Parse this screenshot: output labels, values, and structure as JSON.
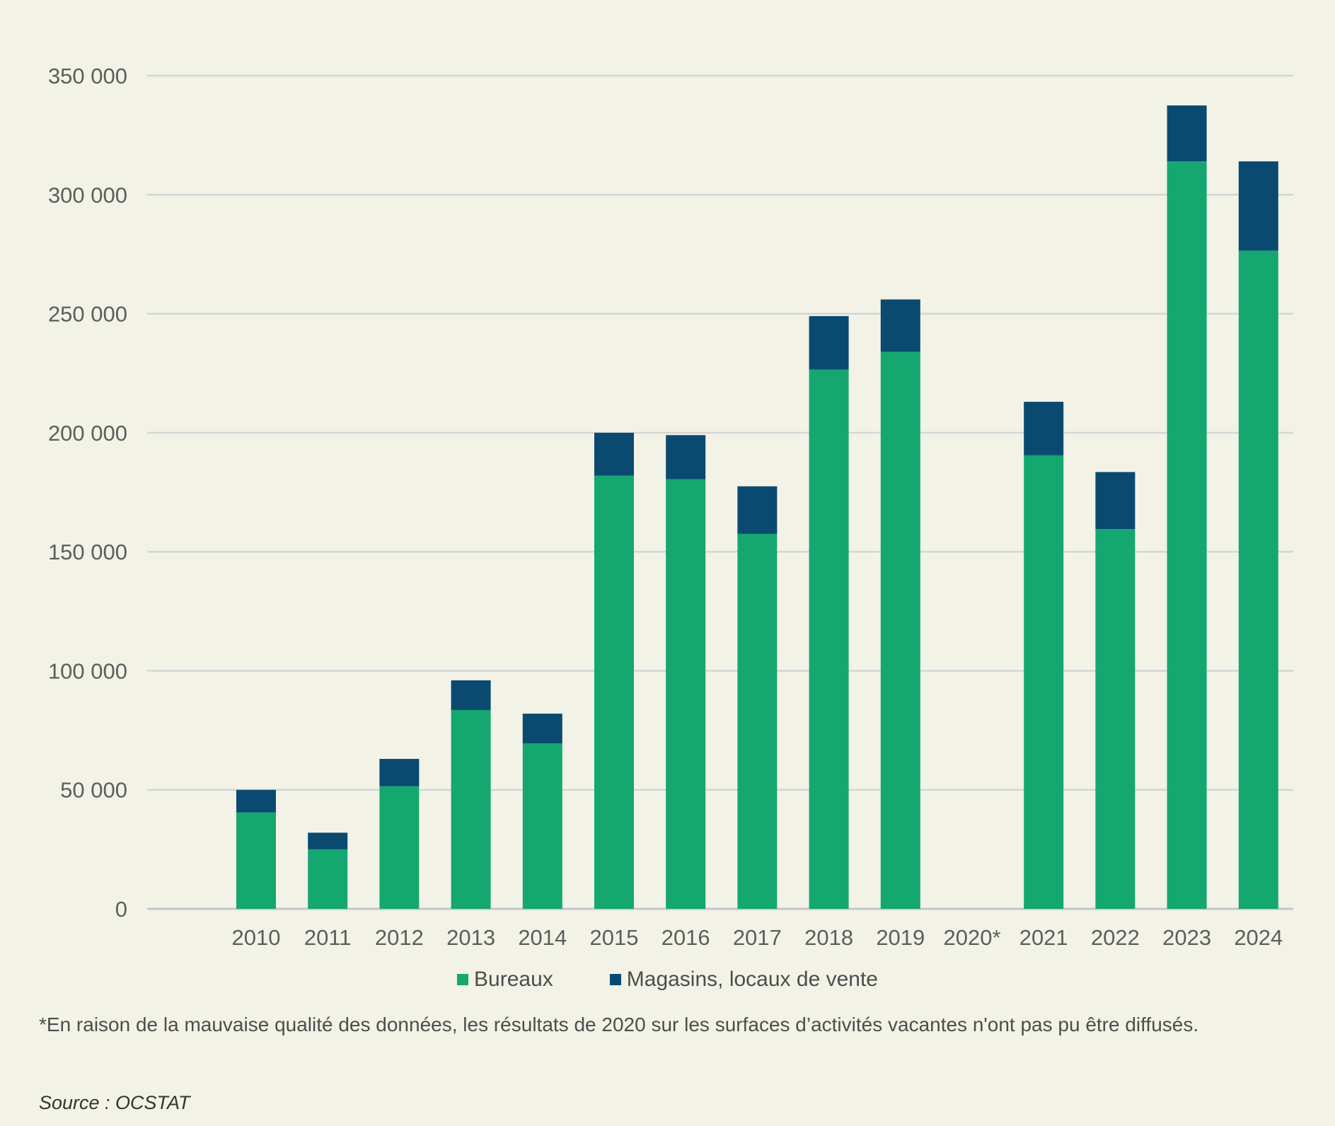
{
  "chart_data": {
    "type": "bar",
    "stacked": true,
    "categories": [
      "2010",
      "2011",
      "2012",
      "2013",
      "2014",
      "2015",
      "2016",
      "2017",
      "2018",
      "2019",
      "2020*",
      "2021",
      "2022",
      "2023",
      "2024"
    ],
    "series": [
      {
        "name": "Bureaux",
        "color": "#14a870",
        "values": [
          40500,
          25000,
          51500,
          83500,
          69500,
          182000,
          180500,
          157500,
          226500,
          234000,
          null,
          190500,
          159500,
          314000,
          276500
        ]
      },
      {
        "name": "Magasins, locaux de vente",
        "color": "#0b4a70",
        "values": [
          9500,
          7000,
          11500,
          12500,
          12500,
          18000,
          18500,
          20000,
          22500,
          22000,
          null,
          22500,
          24000,
          23500,
          37500
        ]
      }
    ],
    "y_ticks": [
      "0",
      "50 000",
      "100 000",
      "150 000",
      "200 000",
      "250 000",
      "300 000",
      "350 000"
    ],
    "ylim": [
      0,
      350000
    ],
    "grid": true,
    "legend_position": "bottom"
  },
  "legend": {
    "item1": "Bureaux",
    "item2": "Magasins, locaux de vente"
  },
  "footnote": "*En raison de la mauvaise qualité des données, les résultats de 2020 sur les surfaces d’activités vacantes n'ont pas pu être diffusés.",
  "source": "Source : OCSTAT"
}
